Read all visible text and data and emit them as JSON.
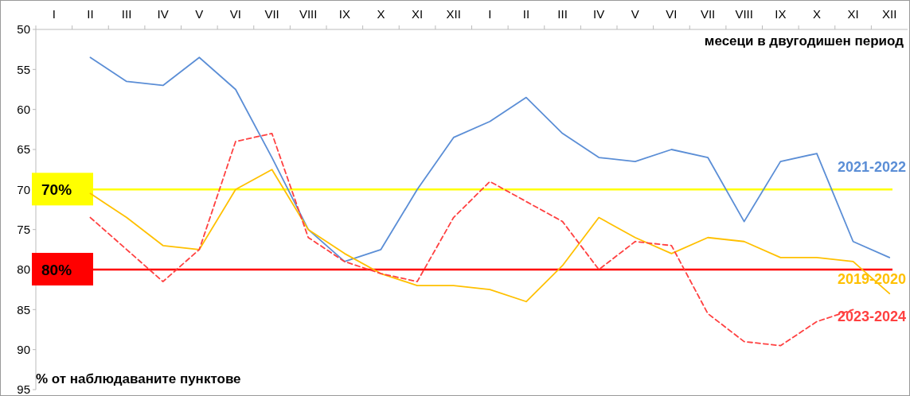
{
  "chart_data": {
    "type": "line",
    "xlabel": "месеци в двугодишен период",
    "ylabel": "% от наблюдаваните пунктове",
    "categories": [
      "I",
      "II",
      "III",
      "IV",
      "V",
      "VI",
      "VII",
      "VIII",
      "IX",
      "X",
      "XI",
      "XII",
      "I",
      "II",
      "III",
      "IV",
      "V",
      "VI",
      "VII",
      "VIII",
      "IX",
      "X",
      "XI",
      "XII"
    ],
    "series": [
      {
        "name": "2021-2022",
        "color": "#5b8ed6",
        "line_style": "solid",
        "values": [
          null,
          53.5,
          56.5,
          57,
          53.5,
          57.5,
          66,
          75,
          79,
          77.5,
          70,
          63.5,
          61.5,
          58.5,
          63,
          66,
          66.5,
          65,
          66,
          74,
          66.5,
          65.5,
          76.5,
          78.5
        ]
      },
      {
        "name": "2019-2020",
        "color": "#ffc000",
        "line_style": "solid",
        "values": [
          null,
          70.5,
          73.5,
          77,
          77.5,
          70,
          67.5,
          75,
          78,
          80.5,
          82,
          82,
          82.5,
          84,
          79.5,
          73.5,
          76,
          78,
          76,
          76.5,
          78.5,
          78.5,
          79,
          83
        ]
      },
      {
        "name": "2023-2024",
        "color": "#ff4040",
        "line_style": "dashed",
        "values": [
          null,
          73.5,
          77.5,
          81.5,
          77.5,
          64,
          63,
          76,
          79,
          80.5,
          81.5,
          73.5,
          69,
          71.5,
          74,
          80,
          76.5,
          77,
          85.5,
          89,
          89.5,
          86.5,
          85,
          null
        ]
      }
    ],
    "ylim": [
      95,
      50
    ],
    "yticks": [
      50,
      55,
      60,
      65,
      70,
      75,
      80,
      85,
      90,
      95
    ],
    "grid": false,
    "ref_lines": [
      {
        "axis": "y",
        "value": 70,
        "label": "70%",
        "color": "#ffff00"
      },
      {
        "axis": "y",
        "value": 80,
        "label": "80%",
        "color": "#ff0000"
      }
    ]
  }
}
